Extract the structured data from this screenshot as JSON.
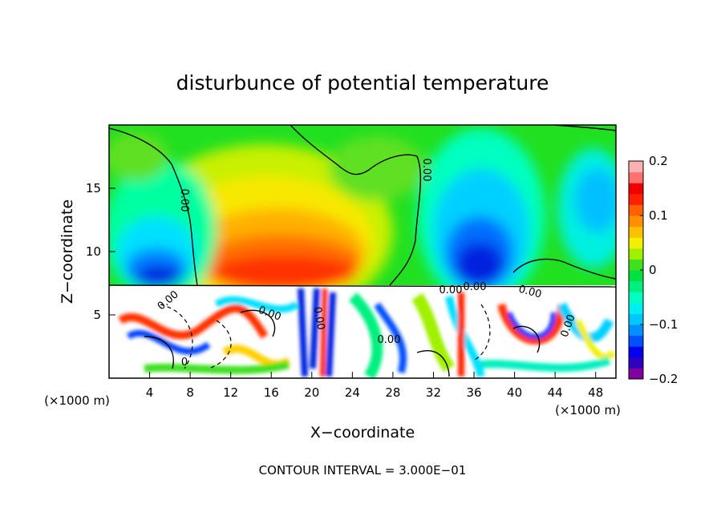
{
  "chart_data": {
    "type": "heatmap",
    "title": "disturbunce of potential temperature",
    "xlabel": "X−coordinate",
    "ylabel": "Z−coordinate",
    "x_unit": "(×1000 m)",
    "z_unit": "(×1000 m)",
    "xlim": [
      0,
      50
    ],
    "ylim": [
      0,
      20
    ],
    "x_ticks": [
      4,
      8,
      12,
      16,
      20,
      24,
      28,
      32,
      36,
      40,
      44,
      48
    ],
    "y_ticks": [
      5,
      10,
      15
    ],
    "colorbar": {
      "range": [
        -0.2,
        0.2
      ],
      "ticks": [
        "0.2",
        "0.1",
        "0",
        "−0.1",
        "−0.2"
      ],
      "colors": [
        "#8000a0",
        "#3000c0",
        "#0000f0",
        "#0050ff",
        "#0090ff",
        "#00c8ff",
        "#00f0f0",
        "#00ffc0",
        "#00f080",
        "#00e040",
        "#40e020",
        "#a0f000",
        "#f0f000",
        "#ffc000",
        "#ff9000",
        "#ff6000",
        "#ff2000",
        "#f00000",
        "#ff7070",
        "#ffb0b0"
      ]
    },
    "contour_labels": [
      "0.00",
      "0.00",
      "0.00",
      "0.00",
      "0.00",
      "0.00",
      "0.00",
      "0.00",
      "0.00",
      "0.00",
      "0"
    ],
    "contour_interval": "CONTOUR INTERVAL = 3.000E−01",
    "grid": false,
    "legend": "right"
  }
}
